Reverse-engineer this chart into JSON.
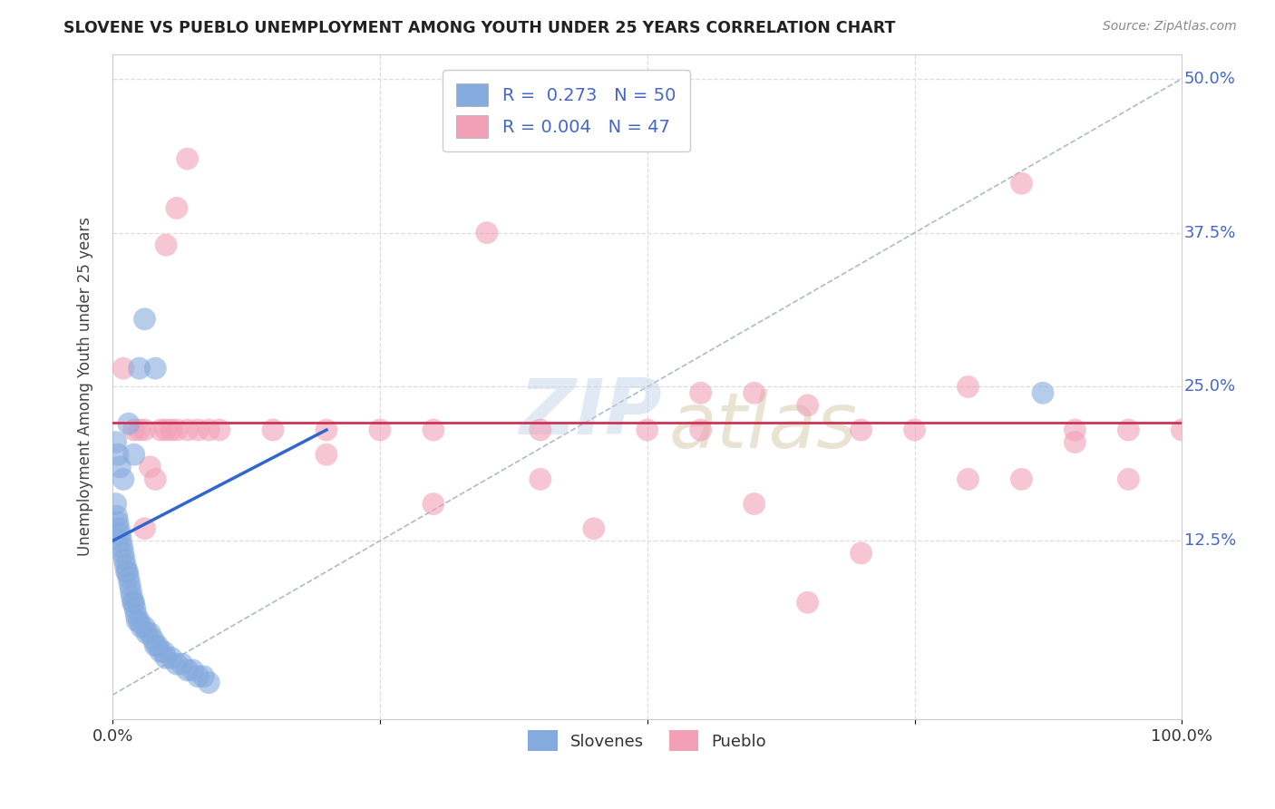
{
  "title": "SLOVENE VS PUEBLO UNEMPLOYMENT AMONG YOUTH UNDER 25 YEARS CORRELATION CHART",
  "source": "Source: ZipAtlas.com",
  "ylabel": "Unemployment Among Youth under 25 years",
  "xlim": [
    0.0,
    1.0
  ],
  "ylim": [
    -0.02,
    0.52
  ],
  "xticks": [
    0.0,
    0.25,
    0.5,
    0.75,
    1.0
  ],
  "xticklabels": [
    "0.0%",
    "",
    "",
    "",
    "100.0%"
  ],
  "yticks": [
    0.0,
    0.125,
    0.25,
    0.375,
    0.5
  ],
  "yticklabels": [
    "",
    "12.5%",
    "25.0%",
    "37.5%",
    "50.0%"
  ],
  "slovene_R": 0.273,
  "slovene_N": 50,
  "pueblo_R": 0.004,
  "pueblo_N": 47,
  "slovene_color": "#85aadd",
  "pueblo_color": "#f2a0b8",
  "slovene_x": [
    0.003,
    0.004,
    0.005,
    0.006,
    0.007,
    0.008,
    0.009,
    0.01,
    0.011,
    0.012,
    0.013,
    0.014,
    0.015,
    0.016,
    0.017,
    0.018,
    0.019,
    0.02,
    0.021,
    0.022,
    0.023,
    0.025,
    0.027,
    0.03,
    0.032,
    0.035,
    0.038,
    0.04,
    0.042,
    0.045,
    0.048,
    0.05,
    0.055,
    0.06,
    0.065,
    0.07,
    0.075,
    0.08,
    0.085,
    0.09,
    0.003,
    0.005,
    0.007,
    0.01,
    0.015,
    0.02,
    0.025,
    0.03,
    0.04,
    0.87
  ],
  "slovene_y": [
    0.155,
    0.145,
    0.14,
    0.135,
    0.13,
    0.125,
    0.12,
    0.115,
    0.11,
    0.105,
    0.1,
    0.1,
    0.095,
    0.09,
    0.085,
    0.08,
    0.075,
    0.075,
    0.07,
    0.065,
    0.06,
    0.06,
    0.055,
    0.055,
    0.05,
    0.05,
    0.045,
    0.04,
    0.04,
    0.035,
    0.035,
    0.03,
    0.03,
    0.025,
    0.025,
    0.02,
    0.02,
    0.015,
    0.015,
    0.01,
    0.205,
    0.195,
    0.185,
    0.175,
    0.22,
    0.195,
    0.265,
    0.305,
    0.265,
    0.245
  ],
  "pueblo_x": [
    0.02,
    0.025,
    0.03,
    0.035,
    0.04,
    0.045,
    0.05,
    0.055,
    0.06,
    0.07,
    0.08,
    0.09,
    0.1,
    0.15,
    0.2,
    0.25,
    0.3,
    0.35,
    0.4,
    0.45,
    0.5,
    0.55,
    0.6,
    0.65,
    0.7,
    0.75,
    0.8,
    0.85,
    0.9,
    0.95,
    1.0,
    0.03,
    0.05,
    0.06,
    0.07,
    0.2,
    0.3,
    0.4,
    0.55,
    0.6,
    0.65,
    0.7,
    0.8,
    0.85,
    0.9,
    0.95,
    0.01
  ],
  "pueblo_y": [
    0.215,
    0.215,
    0.215,
    0.185,
    0.175,
    0.215,
    0.215,
    0.215,
    0.215,
    0.215,
    0.215,
    0.215,
    0.215,
    0.215,
    0.215,
    0.215,
    0.215,
    0.375,
    0.215,
    0.135,
    0.215,
    0.245,
    0.245,
    0.235,
    0.215,
    0.215,
    0.25,
    0.415,
    0.215,
    0.215,
    0.215,
    0.135,
    0.365,
    0.395,
    0.435,
    0.195,
    0.155,
    0.175,
    0.215,
    0.155,
    0.075,
    0.115,
    0.175,
    0.175,
    0.205,
    0.175,
    0.265
  ],
  "watermark_zip": "ZIP",
  "watermark_atlas": "atlas",
  "background_color": "#ffffff",
  "grid_color": "#dddddd",
  "diag_line_color": "#aabbcc",
  "slovene_line_color": "#3366cc",
  "pueblo_line_color": "#cc3355",
  "tick_label_color": "#4466cc",
  "title_color": "#222222",
  "source_color": "#888888"
}
